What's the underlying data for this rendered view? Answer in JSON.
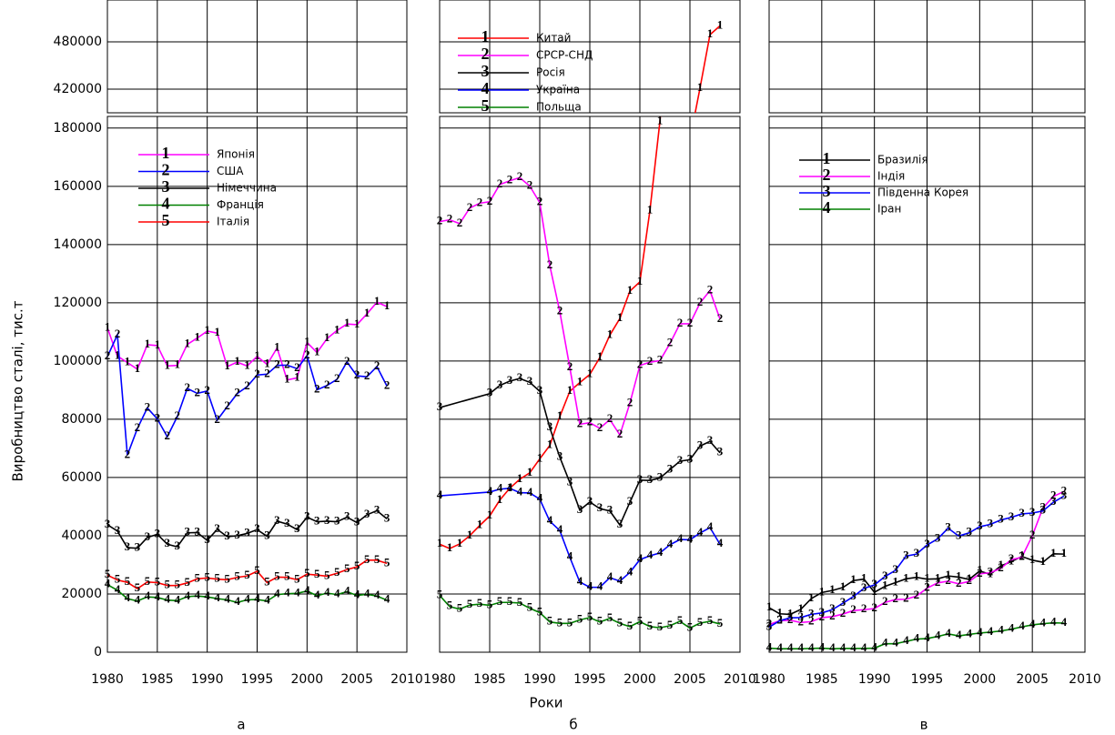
{
  "chart_data": [
    {
      "type": "line",
      "caption": "а",
      "ylabel": "Виробництво сталі, тис.т",
      "ylim": [
        0,
        184000
      ],
      "yticks": [
        0,
        20000,
        40000,
        60000,
        80000,
        100000,
        120000,
        140000,
        160000,
        180000
      ],
      "upper_ylim": [
        390000,
        533000
      ],
      "upper_yticks": [
        420000,
        480000
      ],
      "xlim": [
        1980,
        2010
      ],
      "xticks": [
        1980,
        1985,
        1990,
        1995,
        2000,
        2005,
        2010
      ],
      "grid": true,
      "x": [
        1980,
        1981,
        1982,
        1983,
        1984,
        1985,
        1986,
        1987,
        1988,
        1989,
        1990,
        1991,
        1992,
        1993,
        1994,
        1995,
        1996,
        1997,
        1998,
        1999,
        2000,
        2001,
        2002,
        2003,
        2004,
        2005,
        2006,
        2007,
        2008
      ],
      "series": [
        {
          "name": "Японія",
          "marker": "1",
          "color": "#ff00ff",
          "values": [
            111400,
            101700,
            99500,
            97200,
            105600,
            105300,
            98300,
            98500,
            105700,
            107900,
            110300,
            109600,
            98100,
            99600,
            98300,
            101600,
            98800,
            104500,
            93500,
            94200,
            106400,
            102900,
            107700,
            110500,
            112700,
            112500,
            116200,
            120200,
            118700
          ]
        },
        {
          "name": "США",
          "marker": "2",
          "color": "#0000ff",
          "values": [
            101500,
            109000,
            67700,
            76800,
            83900,
            80100,
            74000,
            80900,
            90600,
            88900,
            89700,
            79700,
            84300,
            88800,
            91200,
            95200,
            95500,
            98500,
            98600,
            97400,
            101800,
            90100,
            91600,
            93700,
            99700,
            94900,
            94600,
            98100,
            91400
          ]
        },
        {
          "name": "Німеччина",
          "marker": "3",
          "color": "#000000",
          "values": [
            43800,
            41600,
            35900,
            35700,
            39400,
            40500,
            37100,
            36200,
            41000,
            41100,
            38400,
            42200,
            39700,
            40000,
            40800,
            42100,
            39800,
            45000,
            44000,
            42100,
            46400,
            44800,
            45000,
            44800,
            46400,
            44500,
            47200,
            48600,
            45800
          ]
        },
        {
          "name": "Франція",
          "marker": "4",
          "color": "#008000",
          "values": [
            23200,
            21300,
            18400,
            17600,
            19000,
            18800,
            17900,
            17700,
            19100,
            19300,
            19000,
            18400,
            18000,
            17100,
            18000,
            18100,
            17600,
            19800,
            20100,
            20200,
            21000,
            19400,
            20300,
            19800,
            20800,
            19500,
            19900,
            19300,
            17900
          ]
        },
        {
          "name": "Італія",
          "marker": "5",
          "color": "#ff0000",
          "values": [
            26500,
            24800,
            24000,
            21800,
            24100,
            23900,
            22900,
            22900,
            23800,
            25200,
            25500,
            25100,
            24900,
            25700,
            26200,
            27800,
            23900,
            25800,
            25700,
            24900,
            26800,
            26500,
            26100,
            27100,
            28400,
            29300,
            31600,
            31600,
            30500
          ]
        }
      ]
    },
    {
      "type": "line",
      "caption": "б",
      "xlabel": "Роки",
      "xlim": [
        1980,
        2010
      ],
      "xticks": [
        1980,
        1985,
        1990,
        1995,
        2000,
        2005,
        2010
      ],
      "grid": true,
      "x": [
        1980,
        1981,
        1982,
        1983,
        1984,
        1985,
        1986,
        1987,
        1988,
        1989,
        1990,
        1991,
        1992,
        1993,
        1994,
        1995,
        1996,
        1997,
        1998,
        1999,
        2000,
        2001,
        2002,
        2003,
        2004,
        2005,
        2006,
        2007,
        2008
      ],
      "series": [
        {
          "name": "Китай",
          "marker": "1",
          "color": "#ff0000",
          "values": [
            37100,
            35600,
            37200,
            40000,
            43500,
            46800,
            52200,
            56300,
            59400,
            61600,
            66400,
            71000,
            80900,
            89600,
            92600,
            95400,
            101200,
            108900,
            114600,
            124000,
            127200,
            151600,
            182200,
            222300,
            272800,
            355800,
            421000,
            489000,
            500300
          ]
        },
        {
          "name": "СРСР-СНД",
          "marker": "2",
          "color": "#ff00ff",
          "values": [
            147900,
            148500,
            147200,
            152500,
            154200,
            154700,
            160600,
            161900,
            163000,
            160100,
            154400,
            132800,
            117000,
            97800,
            78300,
            78800,
            76900,
            79900,
            74600,
            85500,
            98500,
            99600,
            100100,
            106000,
            112800,
            112800,
            119900,
            124200,
            114400
          ]
        },
        {
          "name": "Росія",
          "marker": "3",
          "color": "#000000",
          "x": [
            1980,
            1985,
            1986,
            1987,
            1988,
            1989,
            1990,
            1991,
            1992,
            1993,
            1994,
            1995,
            1996,
            1997,
            1998,
            1999,
            2000,
            2001,
            2002,
            2003,
            2004,
            2005,
            2006,
            2007,
            2008
          ],
          "values": [
            84000,
            88800,
            91600,
            93100,
            94000,
            92700,
            89600,
            77100,
            67000,
            58300,
            48800,
            51600,
            49300,
            48500,
            43700,
            51500,
            59100,
            59000,
            59800,
            62700,
            65600,
            66100,
            70800,
            72400,
            68500
          ]
        },
        {
          "name": "Україна",
          "marker": "4",
          "color": "#0000ff",
          "x": [
            1980,
            1985,
            1986,
            1987,
            1988,
            1989,
            1990,
            1991,
            1992,
            1993,
            1994,
            1995,
            1996,
            1997,
            1998,
            1999,
            2000,
            2001,
            2002,
            2003,
            2004,
            2005,
            2006,
            2007,
            2008
          ],
          "values": [
            53700,
            55000,
            56000,
            56300,
            54800,
            54700,
            52600,
            45000,
            41800,
            32600,
            24100,
            22300,
            22300,
            25600,
            24400,
            27400,
            31800,
            33100,
            34100,
            36900,
            38700,
            38600,
            40900,
            42800,
            37100
          ]
        },
        {
          "name": "Польща",
          "marker": "5",
          "color": "#008000",
          "values": [
            19500,
            15700,
            14800,
            16200,
            16500,
            16100,
            17100,
            17100,
            16900,
            15100,
            13600,
            10400,
            9900,
            9900,
            11100,
            11900,
            10400,
            11600,
            9900,
            8800,
            10500,
            8800,
            8400,
            9100,
            10600,
            8300,
            10000,
            10600,
            9700
          ]
        }
      ]
    },
    {
      "type": "line",
      "caption": "в",
      "xlim": [
        1980,
        2010
      ],
      "xticks": [
        1980,
        1985,
        1990,
        1995,
        2000,
        2005,
        2010
      ],
      "grid": true,
      "x": [
        1980,
        1981,
        1982,
        1983,
        1984,
        1985,
        1986,
        1987,
        1988,
        1989,
        1990,
        1991,
        1992,
        1993,
        1994,
        1995,
        1996,
        1997,
        1998,
        1999,
        2000,
        2001,
        2002,
        2003,
        2004,
        2005,
        2006,
        2007,
        2008
      ],
      "series": [
        {
          "name": "Бразилія",
          "marker": "1",
          "color": "#000000",
          "values": [
            15300,
            13200,
            13000,
            14700,
            18400,
            20500,
            21200,
            22200,
            24600,
            25100,
            20600,
            22600,
            23900,
            25200,
            25700,
            25100,
            25200,
            26200,
            25800,
            25000,
            27900,
            26700,
            29600,
            31100,
            32900,
            31600,
            30900,
            33800,
            33700
          ]
        },
        {
          "name": "Індія",
          "marker": "2",
          "color": "#ff00ff",
          "values": [
            9500,
            10800,
            11000,
            10200,
            10500,
            11900,
            12200,
            13100,
            14300,
            14600,
            15000,
            17100,
            18100,
            18200,
            19300,
            22000,
            23800,
            24400,
            23500,
            24300,
            26900,
            27300,
            28800,
            31800,
            32600,
            40000,
            49500,
            53500,
            55200
          ]
        },
        {
          "name": "Південна Корея",
          "marker": "3",
          "color": "#0000ff",
          "values": [
            8600,
            10800,
            11800,
            11900,
            13000,
            13500,
            14600,
            16800,
            19100,
            21900,
            23100,
            26000,
            28100,
            33000,
            33700,
            36800,
            38900,
            42600,
            39900,
            41000,
            43100,
            43900,
            45400,
            46300,
            47500,
            47800,
            48500,
            51500,
            53600
          ]
        },
        {
          "name": "Іран",
          "marker": "4",
          "color": "#008000",
          "values": [
            1400,
            1200,
            1200,
            1200,
            1300,
            1400,
            1200,
            1300,
            1300,
            1300,
            1400,
            2900,
            2900,
            3700,
            4500,
            4700,
            5400,
            6300,
            5600,
            6100,
            6600,
            6900,
            7300,
            7900,
            8700,
            9400,
            9800,
            10100,
            10000
          ]
        }
      ]
    }
  ]
}
